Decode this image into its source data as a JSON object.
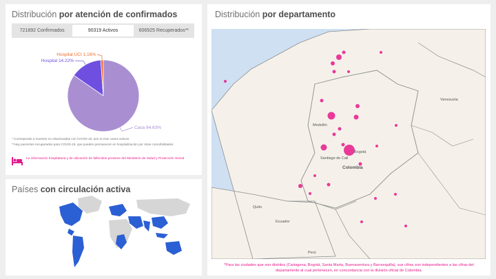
{
  "attencion": {
    "title_light": "Distribución ",
    "title_bold": "por atención de confirmados",
    "tabs": [
      "721892 Confirmados",
      "90319 Activos",
      "606925 Recuperados**"
    ],
    "active_tab": 1,
    "footnote_1": "* Corresponde a muertes no relacionadas con COVID-19, aún si eran casos activos",
    "footnote_2": "**Hay pacientes recuperados para COVID-19, que pueden permanecer en hospitalización por otras comorbilidades",
    "info_text": "La información hospitalaria y de ubicación de fallecidos proviene del Ministerio de Salud y Protección Social",
    "colors": {
      "casa": "#a98fd2",
      "hospital": "#6f4fe0",
      "uci": "#ef6a2c",
      "accent": "#e6198b"
    }
  },
  "chart_data": {
    "type": "pie",
    "labels": [
      "Casa 84.63%",
      "Hospital 14.22%",
      "Hospital UCI 1.16%"
    ],
    "values": [
      84.63,
      14.22,
      1.16
    ]
  },
  "paises": {
    "title_light": "Países ",
    "title_bold": "con circulación activa",
    "colors": {
      "active": "#2b5fd4",
      "inactive": "#d6d6d6"
    }
  },
  "departamento": {
    "title_light": "Distribución ",
    "title_bold": "por departamento",
    "map_labels": [
      "Venezuela",
      "Medellín",
      "Bogotá",
      "Santiago de Cali",
      "Colombia",
      "Quito",
      "Ecuador",
      "Perú"
    ],
    "note": "*Para las ciudades que son distritos (Cartagena, Bogotá, Santa Marta, Buenaventura y Barranquilla), sus cifras son independientes a las cifras del departamento al cual pertenecen, en concordancia con la división oficial de Colombia.",
    "colors": {
      "marker": "#e6198b",
      "land": "#f5f1ea",
      "sea": "#cfe0f3",
      "border": "#8c8c8c"
    }
  }
}
